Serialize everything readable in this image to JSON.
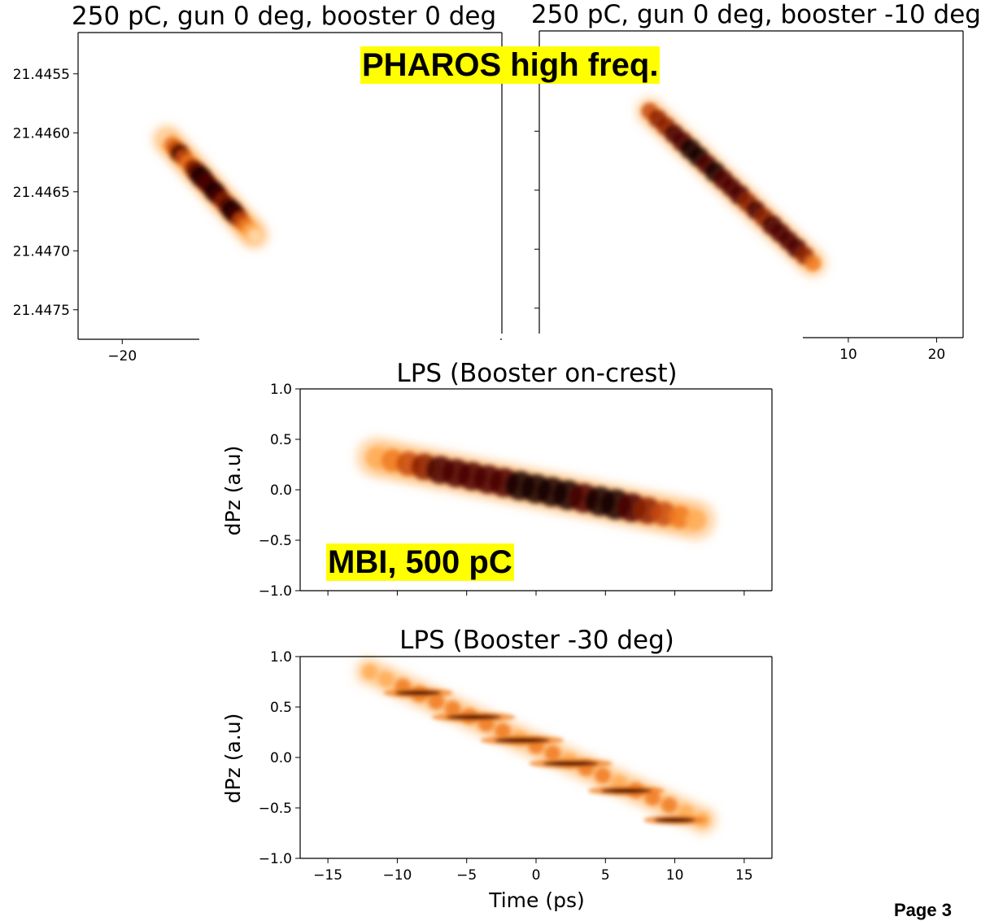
{
  "callouts": {
    "pharos": "PHAROS high freq.",
    "mbi": "MBI, 500 pC"
  },
  "page_label": "Page 3",
  "colors": {
    "colormap": [
      "#fff4e6",
      "#ffd9a8",
      "#ffad55",
      "#f07a1e",
      "#c84a0a",
      "#8c1e02",
      "#4a0600",
      "#140000"
    ],
    "axes": "#000000",
    "callout_background": "#ffff00"
  },
  "chart_data": [
    {
      "id": "top-left",
      "type": "heatmap",
      "title": "250 pC, gun 0 deg, booster 0 deg",
      "xlabel": "",
      "ylabel": "",
      "y_inverted": true,
      "xlim": [
        -25,
        23
      ],
      "ylim": [
        21.44515,
        21.44775
      ],
      "x_ticks": [
        -20,
        -10
      ],
      "x_tick_labels": [
        "−20",
        "−"
      ],
      "y_ticks": [
        21.4455,
        21.446,
        21.4465,
        21.447,
        21.4475
      ],
      "y_tick_labels": [
        "21.4455",
        "21.4460",
        "21.4465",
        "21.4470",
        "21.4475"
      ],
      "density": {
        "axis": [
          [
            -15,
            21.44605
          ],
          [
            -5,
            21.44687
          ]
        ],
        "halfwidth": 0.0001,
        "samples": [
          0,
          0.05,
          0.1,
          0.15,
          0.2,
          0.25,
          0.3,
          0.35,
          0.4,
          0.45,
          0.5,
          0.55,
          0.6,
          0.65,
          0.7,
          0.75,
          0.8,
          0.85,
          0.9,
          0.95,
          1
        ],
        "intensity": [
          0.12,
          0.3,
          0.5,
          0.72,
          0.55,
          0.4,
          0.6,
          0.85,
          0.95,
          0.8,
          0.75,
          0.9,
          0.72,
          0.6,
          0.78,
          0.95,
          0.8,
          0.55,
          0.38,
          0.22,
          0.08
        ]
      }
    },
    {
      "id": "top-right",
      "type": "heatmap",
      "title": "250 pC, gun 0 deg, booster -10 deg",
      "xlabel": "",
      "ylabel": "",
      "y_inverted": true,
      "xlim": [
        -25,
        23
      ],
      "ylim": [
        21.44515,
        21.44775
      ],
      "x_ticks": [
        10,
        20
      ],
      "x_tick_labels": [
        "10",
        "20"
      ],
      "y_ticks": [
        21.4455,
        21.446,
        21.4465,
        21.447,
        21.4475
      ],
      "y_tick_labels": [],
      "density": {
        "axis": [
          [
            -12.5,
            21.44583
          ],
          [
            6,
            21.44712
          ]
        ],
        "halfwidth": 0.0001,
        "samples": [
          0,
          0.05,
          0.1,
          0.15,
          0.2,
          0.25,
          0.3,
          0.35,
          0.4,
          0.45,
          0.5,
          0.55,
          0.6,
          0.65,
          0.7,
          0.75,
          0.8,
          0.85,
          0.9,
          0.95,
          1
        ],
        "intensity": [
          0.45,
          0.62,
          0.68,
          0.72,
          0.85,
          0.92,
          0.88,
          0.8,
          0.9,
          0.82,
          0.75,
          0.85,
          0.7,
          0.72,
          0.68,
          0.85,
          0.78,
          0.72,
          0.8,
          0.62,
          0.35
        ]
      }
    },
    {
      "id": "middle",
      "type": "heatmap",
      "title": "LPS (Booster on-crest)",
      "xlabel": "",
      "ylabel": "dPz (a.u)",
      "xlim": [
        -17,
        17
      ],
      "ylim": [
        -1.0,
        1.0
      ],
      "x_ticks": [
        -15,
        -10,
        -5,
        0,
        5,
        10,
        15
      ],
      "x_tick_labels": [],
      "y_ticks": [
        -1.0,
        -0.5,
        0.0,
        0.5,
        1.0
      ],
      "y_tick_labels": [
        "−1.0",
        "−0.5",
        "0.0",
        "0.5",
        "1.0"
      ],
      "density": {
        "axis": [
          [
            -11.5,
            0.32
          ],
          [
            11.5,
            -0.3
          ]
        ],
        "halfwidth": 0.17,
        "samples": [
          0,
          0.05,
          0.1,
          0.15,
          0.2,
          0.25,
          0.3,
          0.35,
          0.4,
          0.45,
          0.5,
          0.55,
          0.6,
          0.65,
          0.7,
          0.75,
          0.8,
          0.85,
          0.9,
          0.95,
          1
        ],
        "intensity": [
          0.2,
          0.3,
          0.45,
          0.62,
          0.75,
          0.78,
          0.8,
          0.82,
          0.85,
          0.88,
          0.86,
          0.88,
          0.9,
          0.85,
          0.88,
          0.95,
          0.82,
          0.65,
          0.45,
          0.3,
          0.15
        ]
      }
    },
    {
      "id": "bottom",
      "type": "heatmap",
      "title": "LPS (Booster -30 deg)",
      "xlabel": "Time (ps)",
      "ylabel": "dPz (a.u)",
      "xlim": [
        -17,
        17
      ],
      "ylim": [
        -1.0,
        1.0
      ],
      "x_ticks": [
        -15,
        -10,
        -5,
        0,
        5,
        10,
        15
      ],
      "x_tick_labels": [
        "−15",
        "−10",
        "−5",
        "0",
        "5",
        "10",
        "15"
      ],
      "y_ticks": [
        -1.0,
        -0.5,
        0.0,
        0.5,
        1.0
      ],
      "y_tick_labels": [
        "−1.0",
        "−0.5",
        "0.0",
        "0.5",
        "1.0"
      ],
      "density": {
        "axis": [
          [
            -12,
            0.85
          ],
          [
            12,
            -0.62
          ]
        ],
        "halfwidth": 0.12,
        "samples": [
          0,
          0.05,
          0.1,
          0.15,
          0.2,
          0.25,
          0.3,
          0.35,
          0.4,
          0.45,
          0.5,
          0.55,
          0.6,
          0.65,
          0.7,
          0.75,
          0.8,
          0.85,
          0.9,
          0.95,
          1
        ],
        "intensity": [
          0.2,
          0.25,
          0.3,
          0.4,
          0.35,
          0.3,
          0.3,
          0.35,
          0.3,
          0.28,
          0.3,
          0.3,
          0.28,
          0.3,
          0.3,
          0.28,
          0.3,
          0.3,
          0.3,
          0.28,
          0.2
        ]
      },
      "bands": [
        {
          "x_center": -8.5,
          "y": 0.64,
          "width": 5.0
        },
        {
          "x_center": -4.5,
          "y": 0.4,
          "width": 6.0
        },
        {
          "x_center": -1.0,
          "y": 0.17,
          "width": 6.0
        },
        {
          "x_center": 2.5,
          "y": -0.06,
          "width": 6.0
        },
        {
          "x_center": 6.5,
          "y": -0.33,
          "width": 5.5
        },
        {
          "x_center": 10.0,
          "y": -0.62,
          "width": 4.5
        }
      ]
    }
  ]
}
